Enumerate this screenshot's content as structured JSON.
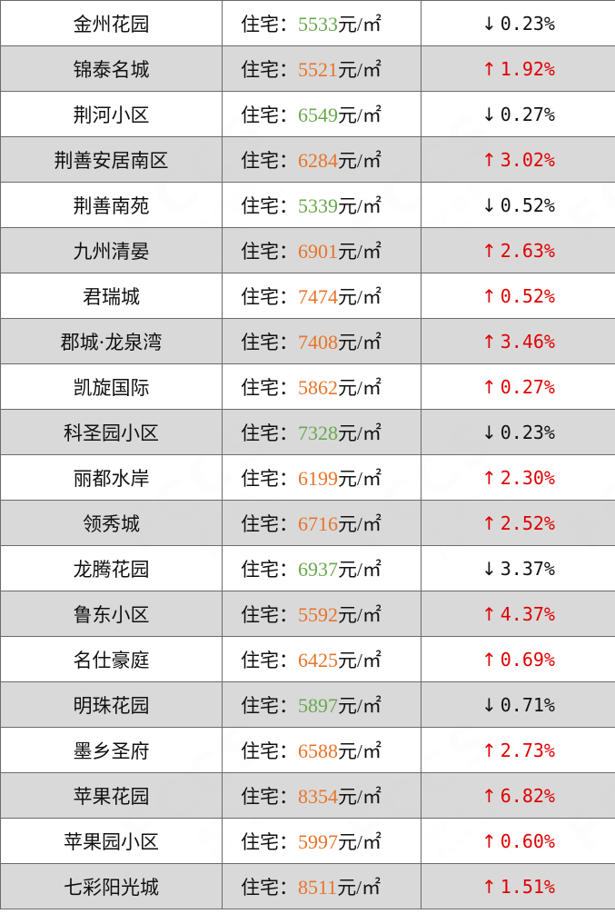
{
  "colors": {
    "up": "#e8742a",
    "down": "#6aa84f",
    "up_arrow": "#e00000",
    "down_arrow": "#111111"
  },
  "watermark": {
    "logo": "FCCS",
    "brand": "房产超市",
    "domain": "fccs.com"
  },
  "rows": [
    {
      "name": "金州花园",
      "type": "住宅：",
      "price": "5533",
      "unit": "元/㎡",
      "trend": "down",
      "arrow": "↓",
      "change": "0.23%"
    },
    {
      "name": "锦泰名城",
      "type": "住宅：",
      "price": "5521",
      "unit": "元/㎡",
      "trend": "up",
      "arrow": "↑",
      "change": "1.92%"
    },
    {
      "name": "荆河小区",
      "type": "住宅：",
      "price": "6549",
      "unit": "元/㎡",
      "trend": "down",
      "arrow": "↓",
      "change": "0.27%"
    },
    {
      "name": "荆善安居南区",
      "type": "住宅：",
      "price": "6284",
      "unit": "元/㎡",
      "trend": "up",
      "arrow": "↑",
      "change": "3.02%"
    },
    {
      "name": "荆善南苑",
      "type": "住宅：",
      "price": "5339",
      "unit": "元/㎡",
      "trend": "down",
      "arrow": "↓",
      "change": "0.52%"
    },
    {
      "name": "九州清晏",
      "type": "住宅：",
      "price": "6901",
      "unit": "元/㎡",
      "trend": "up",
      "arrow": "↑",
      "change": "2.63%"
    },
    {
      "name": "君瑞城",
      "type": "住宅：",
      "price": "7474",
      "unit": "元/㎡",
      "trend": "up",
      "arrow": "↑",
      "change": "0.52%"
    },
    {
      "name": "郡城·龙泉湾",
      "type": "住宅：",
      "price": "7408",
      "unit": "元/㎡",
      "trend": "up",
      "arrow": "↑",
      "change": "3.46%"
    },
    {
      "name": "凯旋国际",
      "type": "住宅：",
      "price": "5862",
      "unit": "元/㎡",
      "trend": "up",
      "arrow": "↑",
      "change": "0.27%"
    },
    {
      "name": "科圣园小区",
      "type": "住宅：",
      "price": "7328",
      "unit": "元/㎡",
      "trend": "down",
      "arrow": "↓",
      "change": "0.23%"
    },
    {
      "name": "丽都水岸",
      "type": "住宅：",
      "price": "6199",
      "unit": "元/㎡",
      "trend": "up",
      "arrow": "↑",
      "change": "2.30%"
    },
    {
      "name": "领秀城",
      "type": "住宅：",
      "price": "6716",
      "unit": "元/㎡",
      "trend": "up",
      "arrow": "↑",
      "change": "2.52%"
    },
    {
      "name": "龙腾花园",
      "type": "住宅：",
      "price": "6937",
      "unit": "元/㎡",
      "trend": "down",
      "arrow": "↓",
      "change": "3.37%"
    },
    {
      "name": "鲁东小区",
      "type": "住宅：",
      "price": "5592",
      "unit": "元/㎡",
      "trend": "up",
      "arrow": "↑",
      "change": "4.37%"
    },
    {
      "name": "名仕豪庭",
      "type": "住宅：",
      "price": "6425",
      "unit": "元/㎡",
      "trend": "up",
      "arrow": "↑",
      "change": "0.69%"
    },
    {
      "name": "明珠花园",
      "type": "住宅：",
      "price": "5897",
      "unit": "元/㎡",
      "trend": "down",
      "arrow": "↓",
      "change": "0.71%"
    },
    {
      "name": "墨乡圣府",
      "type": "住宅：",
      "price": "6588",
      "unit": "元/㎡",
      "trend": "up",
      "arrow": "↑",
      "change": "2.73%"
    },
    {
      "name": "苹果花园",
      "type": "住宅：",
      "price": "8354",
      "unit": "元/㎡",
      "trend": "up",
      "arrow": "↑",
      "change": "6.82%"
    },
    {
      "name": "苹果园小区",
      "type": "住宅：",
      "price": "5997",
      "unit": "元/㎡",
      "trend": "up",
      "arrow": "↑",
      "change": "0.60%"
    },
    {
      "name": "七彩阳光城",
      "type": "住宅：",
      "price": "8511",
      "unit": "元/㎡",
      "trend": "up",
      "arrow": "↑",
      "change": "1.51%"
    }
  ]
}
